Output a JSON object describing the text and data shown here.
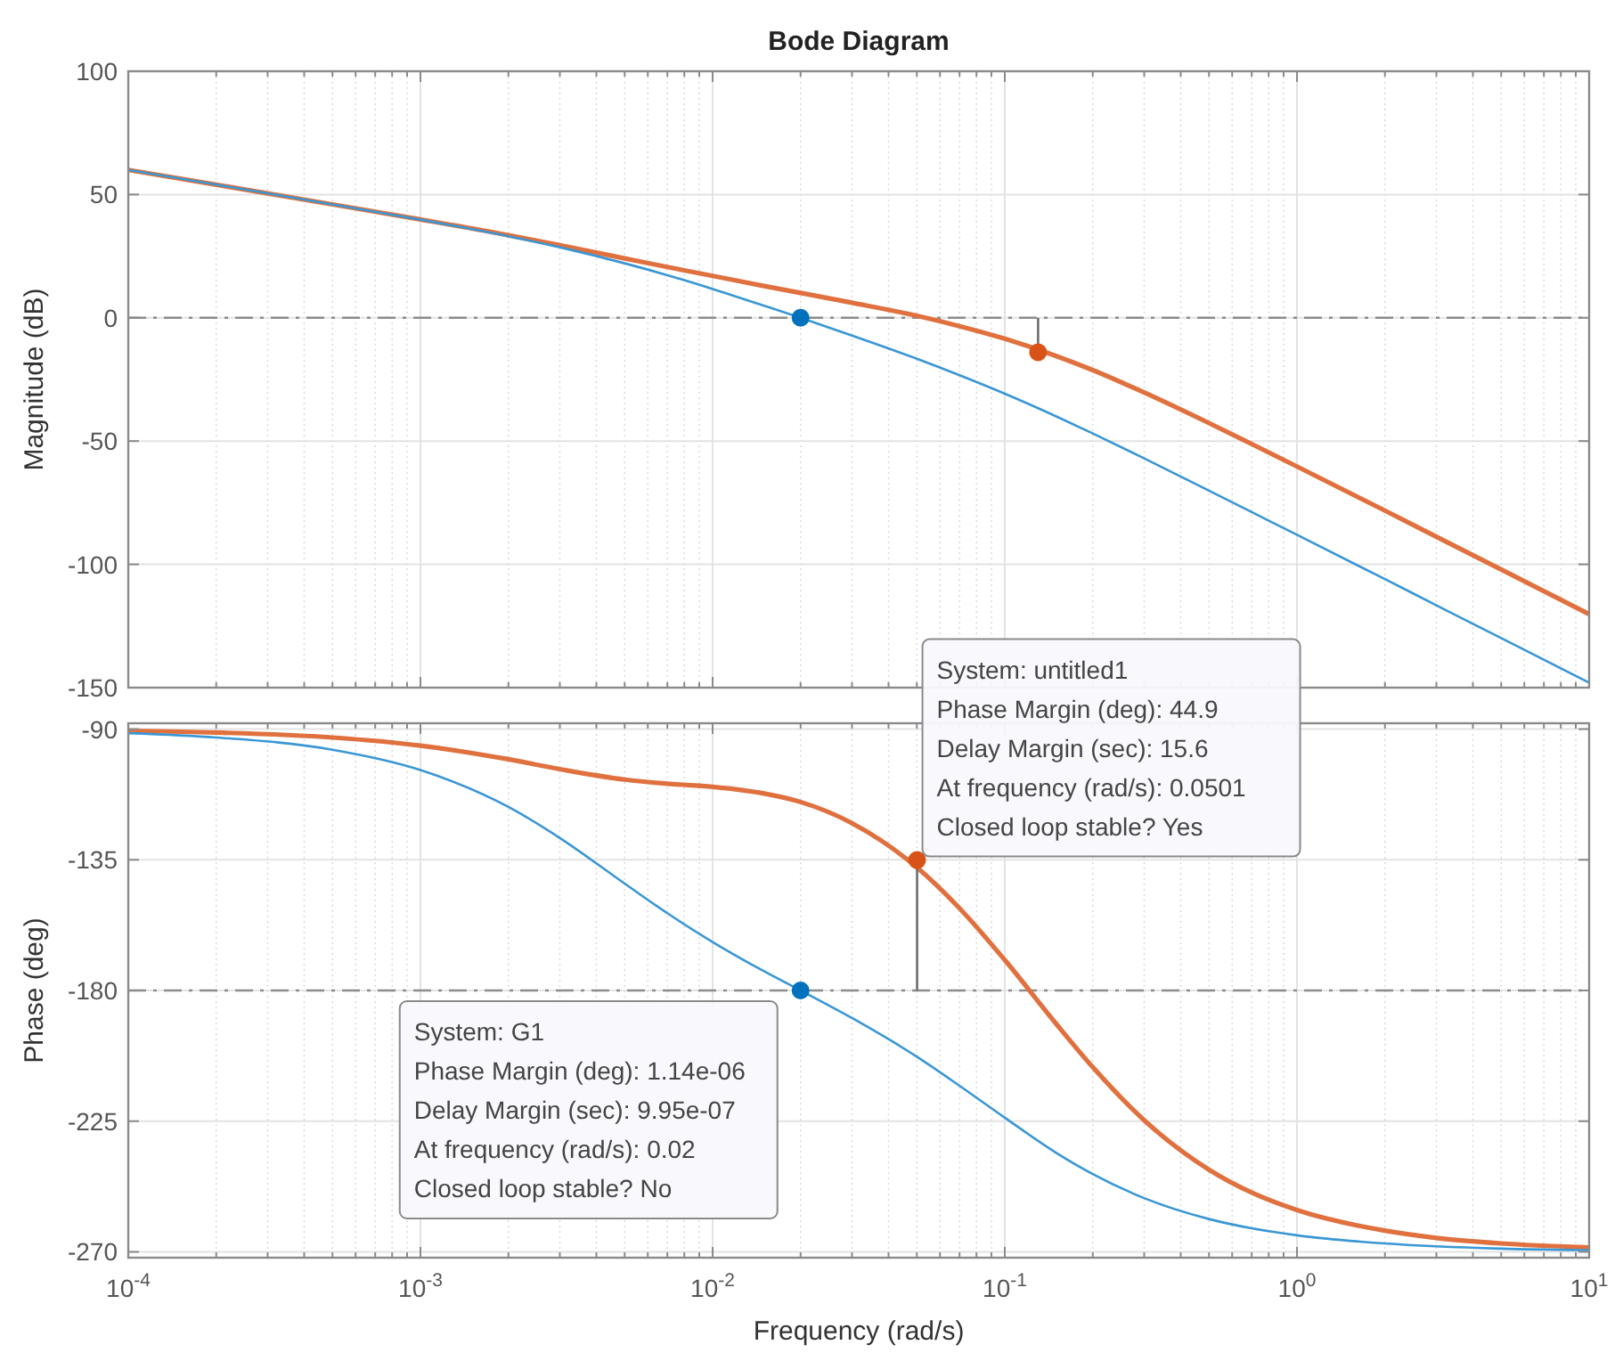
{
  "chart_data": [
    {
      "type": "line",
      "title": "Bode Diagram",
      "ylabel": "Magnitude (dB)",
      "log": "x",
      "grid": true,
      "tick_labels": "y",
      "xlim": [
        0.0001,
        10
      ],
      "xticks": [
        {
          "value": 0.0001,
          "label": null
        },
        {
          "value": 0.001,
          "label": null
        },
        {
          "value": 0.01,
          "label": null
        },
        {
          "value": 0.1,
          "label": null
        },
        {
          "value": 1,
          "label": null
        },
        {
          "value": 10,
          "label": null
        }
      ],
      "ylim": [
        -150,
        100
      ],
      "yticks": [
        -150,
        -100,
        -50,
        0,
        50,
        100
      ],
      "x": [
        0.0001,
        0.0002,
        0.0005,
        0.001,
        0.002,
        0.003,
        0.005,
        0.007,
        0.01,
        0.015,
        0.02,
        0.03,
        0.05,
        0.07,
        0.1,
        0.15,
        0.2,
        0.3,
        0.5,
        0.7,
        1,
        2,
        3,
        5,
        10
      ],
      "ref_lines": [
        {
          "axis": "y",
          "value": 0,
          "color": "#8c8c8c",
          "line_style": "dashed"
        }
      ],
      "series": [
        {
          "type": "line",
          "color": "#e0713f",
          "values": [
            60.0,
            54.0,
            46.0,
            39.9,
            33.5,
            29.4,
            24.1,
            20.6,
            17.0,
            12.9,
            10.1,
            6.1,
            0.8,
            -3.4,
            -8.5,
            -15.5,
            -21.2,
            -30.3,
            -42.7,
            -51.2,
            -60.3,
            -78.2,
            -88.8,
            -102.1,
            -120.2
          ]
        },
        {
          "type": "line",
          "color": "#3a97d4",
          "values": [
            60.0,
            54.0,
            46.0,
            39.8,
            33.1,
            28.6,
            22.1,
            17.3,
            11.7,
            4.9,
            0.0,
            -7.2,
            -16.6,
            -23.3,
            -30.8,
            -40.0,
            -46.9,
            -57.0,
            -70.1,
            -78.8,
            -88.0,
            -106.0,
            -116.6,
            -129.9,
            -148.0
          ]
        },
        {
          "type": "line",
          "color": "#6e6e6e",
          "x": [
            0.13,
            0.13
          ],
          "values": [
            0,
            -14
          ]
        },
        {
          "type": "scatter",
          "marker": "circle",
          "color": "#0072bd",
          "x": [
            0.02
          ],
          "values": [
            0
          ]
        },
        {
          "type": "scatter",
          "marker": "circle",
          "color": "#d95319",
          "x": [
            0.13
          ],
          "values": [
            -14
          ]
        }
      ]
    },
    {
      "type": "line",
      "xlabel": "Frequency  (rad/s)",
      "ylabel": "Phase (deg)",
      "log": "x",
      "grid": true,
      "xlim": [
        0.0001,
        10
      ],
      "xticks": [
        {
          "value": 0.0001,
          "label": "10$^{-4}$"
        },
        {
          "value": 0.001,
          "label": "10$^{-3}$"
        },
        {
          "value": 0.01,
          "label": "10$^{-2}$"
        },
        {
          "value": 0.1,
          "label": "10$^{-1}$"
        },
        {
          "value": 1,
          "label": "10$^{0}$"
        },
        {
          "value": 10,
          "label": "10$^{1}$"
        }
      ],
      "ylim": [
        -272,
        -88
      ],
      "yticks": [
        -270,
        -225,
        -180,
        -135,
        -90
      ],
      "x": [
        0.0001,
        0.0002,
        0.0005,
        0.001,
        0.002,
        0.003,
        0.005,
        0.007,
        0.01,
        0.015,
        0.02,
        0.03,
        0.05,
        0.07,
        0.1,
        0.15,
        0.2,
        0.3,
        0.5,
        0.7,
        1,
        2,
        3,
        5,
        10
      ],
      "ref_lines": [
        {
          "axis": "y",
          "value": -180,
          "color": "#8c8c8c",
          "line_style": "dashed"
        }
      ],
      "annotations": [
        {
          "text": "System: untitled1\nPhase Margin (deg): 44.9\nDelay Margin (sec): 15.6\nAt frequency (rad/s): 0.0501\nClosed loop stable? Yes",
          "x": 0.0501,
          "y": -135.1
        },
        {
          "text": "System: G1\nPhase Margin (deg): 1.14e-06\nDelay Margin (sec): 9.95e-07\nAt frequency (rad/s): 0.02\nClosed loop stable? No",
          "x": 0.02,
          "y": -180
        }
      ],
      "series": [
        {
          "type": "line",
          "color": "#e0713f",
          "values": [
            -90.6,
            -91.2,
            -92.9,
            -95.7,
            -100.4,
            -103.8,
            -107.4,
            -108.8,
            -109.9,
            -112.2,
            -115.1,
            -122.4,
            -137.6,
            -151.7,
            -169.5,
            -191.5,
            -206.4,
            -224.7,
            -241.7,
            -249.6,
            -255.6,
            -262.7,
            -265.2,
            -267.1,
            -268.5
          ]
        },
        {
          "type": "line",
          "color": "#3a97d4",
          "values": [
            -91.4,
            -92.9,
            -97.1,
            -104.1,
            -116.8,
            -127.5,
            -143.2,
            -153.4,
            -163.3,
            -173.4,
            -180.0,
            -189.5,
            -202.8,
            -212.8,
            -223.8,
            -235.9,
            -243.2,
            -251.5,
            -258.7,
            -261.9,
            -264.3,
            -267.1,
            -268.1,
            -268.9,
            -269.4
          ]
        },
        {
          "type": "line",
          "color": "#6e6e6e",
          "x": [
            0.0501,
            0.0501
          ],
          "values": [
            -180,
            -135.1
          ]
        },
        {
          "type": "scatter",
          "marker": "circle",
          "color": "#0072bd",
          "x": [
            0.02
          ],
          "values": [
            -180
          ]
        },
        {
          "type": "scatter",
          "marker": "circle",
          "color": "#d95319",
          "x": [
            0.0501
          ],
          "values": [
            -135.1
          ]
        }
      ]
    }
  ]
}
